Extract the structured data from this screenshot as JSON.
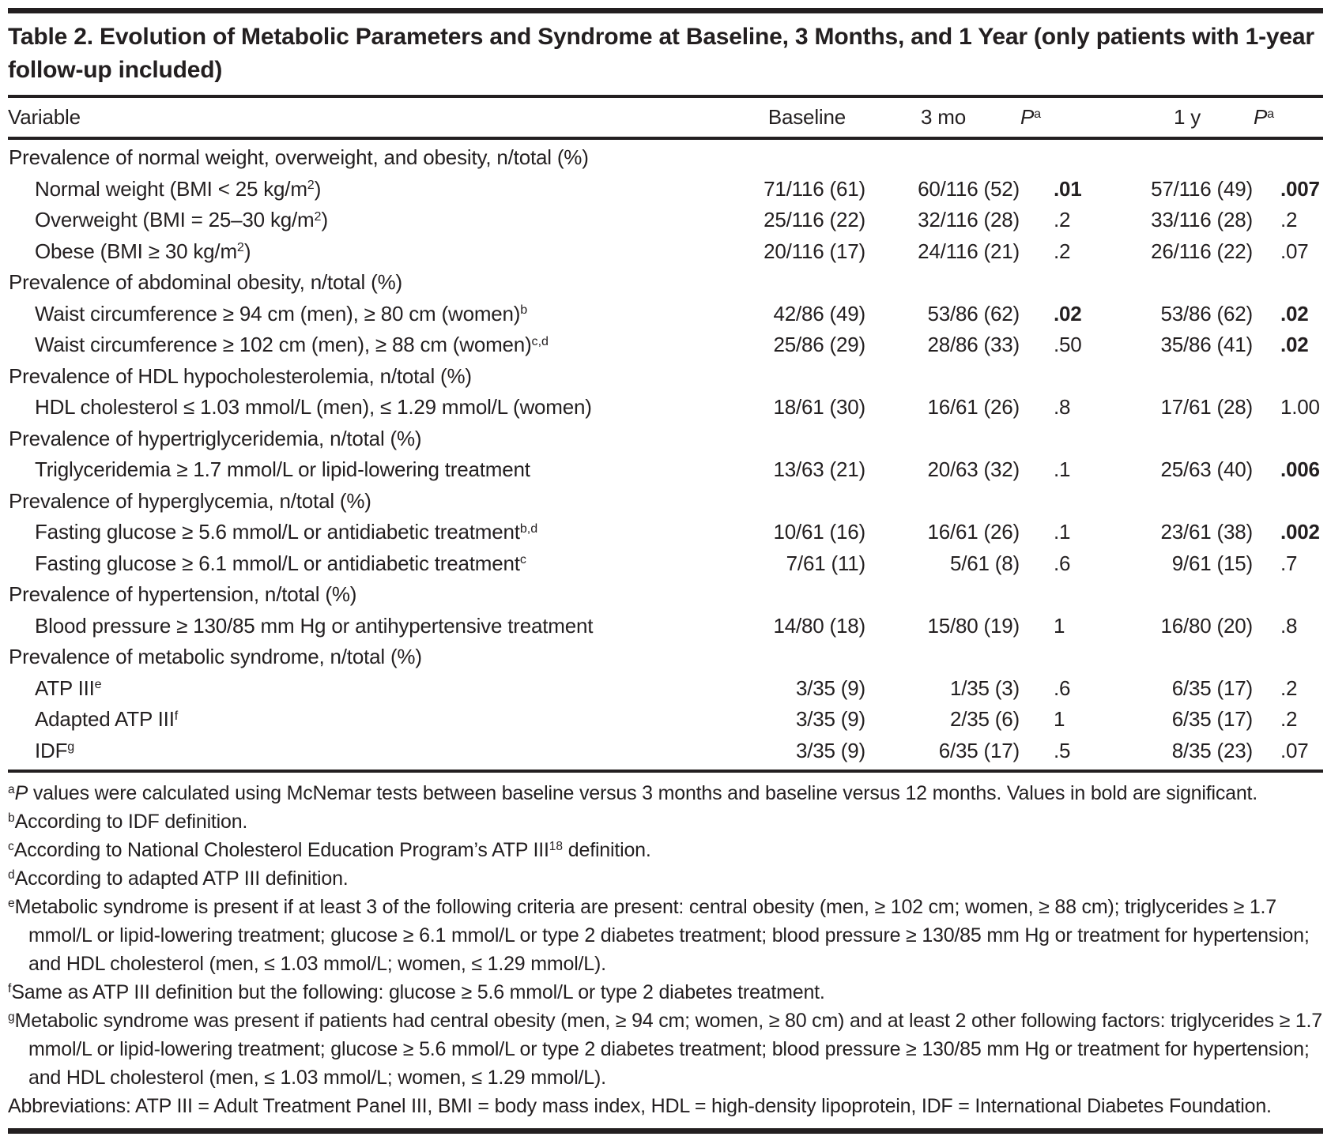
{
  "colors": {
    "text": "#231f20",
    "rule": "#231f20",
    "background": "#ffffff"
  },
  "table": {
    "title": "Table 2. Evolution of Metabolic Parameters and Syndrome at Baseline, 3 Months, and 1 Year (only patients with 1-year follow-up included)",
    "header": {
      "variable": "Variable",
      "baseline": "Baseline",
      "three_mo": "3 mo",
      "p_label": "P",
      "p_sup": "a",
      "one_y": "1 y"
    },
    "rows": [
      {
        "section": true,
        "label": [
          {
            "t": "Prevalence of normal weight, overweight, and obesity, n/total (%)"
          }
        ]
      },
      {
        "section": false,
        "label": [
          {
            "t": "Normal weight (BMI < 25 kg/m"
          },
          {
            "s": "2"
          },
          {
            "t": ")"
          }
        ],
        "cells": [
          "71/116 (61)",
          "60/116 (52)",
          ".01",
          "57/116 (49)",
          ".007"
        ],
        "bold": [
          0,
          0,
          1,
          0,
          1
        ]
      },
      {
        "section": false,
        "label": [
          {
            "t": "Overweight (BMI = 25–30 kg/m"
          },
          {
            "s": "2"
          },
          {
            "t": ")"
          }
        ],
        "cells": [
          "25/116 (22)",
          "32/116 (28)",
          ".2",
          "33/116 (28)",
          ".2"
        ],
        "bold": [
          0,
          0,
          0,
          0,
          0
        ]
      },
      {
        "section": false,
        "label": [
          {
            "t": "Obese (BMI ≥ 30 kg/m"
          },
          {
            "s": "2"
          },
          {
            "t": ")"
          }
        ],
        "cells": [
          "20/116 (17)",
          "24/116 (21)",
          ".2",
          "26/116 (22)",
          ".07"
        ],
        "bold": [
          0,
          0,
          0,
          0,
          0
        ]
      },
      {
        "section": true,
        "label": [
          {
            "t": "Prevalence of abdominal obesity, n/total (%)"
          }
        ]
      },
      {
        "section": false,
        "label": [
          {
            "t": "Waist circumference ≥ 94 cm (men), ≥ 80 cm (women)"
          },
          {
            "s": "b"
          }
        ],
        "cells": [
          "42/86 (49)",
          "53/86 (62)",
          ".02",
          "53/86 (62)",
          ".02"
        ],
        "bold": [
          0,
          0,
          1,
          0,
          1
        ]
      },
      {
        "section": false,
        "label": [
          {
            "t": "Waist circumference ≥ 102 cm (men), ≥ 88 cm (women)"
          },
          {
            "s": "c,d"
          }
        ],
        "cells": [
          "25/86 (29)",
          "28/86 (33)",
          ".50",
          "35/86 (41)",
          ".02"
        ],
        "bold": [
          0,
          0,
          0,
          0,
          1
        ]
      },
      {
        "section": true,
        "label": [
          {
            "t": "Prevalence of HDL hypocholesterolemia, n/total (%)"
          }
        ]
      },
      {
        "section": false,
        "label": [
          {
            "t": "HDL cholesterol ≤ 1.03 mmol/L (men), ≤ 1.29 mmol/L (women)"
          }
        ],
        "cells": [
          "18/61 (30)",
          "16/61 (26)",
          ".8",
          "17/61 (28)",
          "1.00"
        ],
        "bold": [
          0,
          0,
          0,
          0,
          0
        ]
      },
      {
        "section": true,
        "label": [
          {
            "t": "Prevalence of hypertriglyceridemia, n/total (%)"
          }
        ]
      },
      {
        "section": false,
        "label": [
          {
            "t": "Triglyceridemia ≥ 1.7 mmol/L or lipid-lowering treatment"
          }
        ],
        "cells": [
          "13/63 (21)",
          "20/63 (32)",
          ".1",
          "25/63 (40)",
          ".006"
        ],
        "bold": [
          0,
          0,
          0,
          0,
          1
        ]
      },
      {
        "section": true,
        "label": [
          {
            "t": "Prevalence of hyperglycemia, n/total (%)"
          }
        ]
      },
      {
        "section": false,
        "label": [
          {
            "t": "Fasting glucose ≥ 5.6 mmol/L or antidiabetic treatment"
          },
          {
            "s": "b,d"
          }
        ],
        "cells": [
          "10/61 (16)",
          "16/61 (26)",
          ".1",
          "23/61 (38)",
          ".002"
        ],
        "bold": [
          0,
          0,
          0,
          0,
          1
        ]
      },
      {
        "section": false,
        "label": [
          {
            "t": "Fasting glucose ≥ 6.1 mmol/L or antidiabetic treatment"
          },
          {
            "s": "c"
          }
        ],
        "cells": [
          "7/61 (11)",
          "5/61 (8)",
          ".6",
          "9/61 (15)",
          ".7"
        ],
        "bold": [
          0,
          0,
          0,
          0,
          0
        ]
      },
      {
        "section": true,
        "label": [
          {
            "t": "Prevalence of hypertension, n/total (%)"
          }
        ]
      },
      {
        "section": false,
        "label": [
          {
            "t": "Blood pressure ≥ 130/85 mm Hg or antihypertensive treatment"
          }
        ],
        "cells": [
          "14/80 (18)",
          "15/80 (19)",
          "1",
          "16/80 (20)",
          ".8"
        ],
        "bold": [
          0,
          0,
          0,
          0,
          0
        ]
      },
      {
        "section": true,
        "label": [
          {
            "t": "Prevalence of metabolic syndrome, n/total (%)"
          }
        ]
      },
      {
        "section": false,
        "label": [
          {
            "t": "ATP III"
          },
          {
            "s": "e"
          }
        ],
        "cells": [
          "3/35 (9)",
          "1/35 (3)",
          ".6",
          "6/35 (17)",
          ".2"
        ],
        "bold": [
          0,
          0,
          0,
          0,
          0
        ]
      },
      {
        "section": false,
        "label": [
          {
            "t": "Adapted ATP III"
          },
          {
            "s": "f"
          }
        ],
        "cells": [
          "3/35 (9)",
          "2/35 (6)",
          "1",
          "6/35 (17)",
          ".2"
        ],
        "bold": [
          0,
          0,
          0,
          0,
          0
        ]
      },
      {
        "section": false,
        "label": [
          {
            "t": "IDF"
          },
          {
            "s": "g"
          }
        ],
        "cells": [
          "3/35 (9)",
          "6/35 (17)",
          ".5",
          "8/35 (23)",
          ".07"
        ],
        "bold": [
          0,
          0,
          0,
          0,
          0
        ]
      }
    ]
  },
  "footnotes": [
    {
      "segments": [
        {
          "s": "a"
        },
        {
          "i": "P"
        },
        {
          "t": " values were calculated using McNemar tests between baseline versus 3 months and baseline versus 12 months. Values in bold are significant."
        }
      ]
    },
    {
      "segments": [
        {
          "s": "b"
        },
        {
          "t": "According to IDF definition."
        }
      ]
    },
    {
      "segments": [
        {
          "s": "c"
        },
        {
          "t": "According to National Cholesterol Education Program’s ATP III"
        },
        {
          "s": "18"
        },
        {
          "t": " definition."
        }
      ]
    },
    {
      "segments": [
        {
          "s": "d"
        },
        {
          "t": "According to adapted ATP III definition."
        }
      ]
    },
    {
      "segments": [
        {
          "s": "e"
        },
        {
          "t": "Metabolic syndrome is present if at least 3 of the following criteria are present: central obesity (men, ≥ 102 cm; women, ≥ 88 cm); triglycerides ≥ 1.7 mmol/L or lipid-lowering treatment; glucose ≥ 6.1 mmol/L or type 2 diabetes treatment; blood pressure ≥ 130/85 mm Hg or treatment for hypertension; and HDL cholesterol (men, ≤ 1.03 mmol/L; women, ≤ 1.29 mmol/L)."
        }
      ]
    },
    {
      "segments": [
        {
          "s": "f"
        },
        {
          "t": "Same as ATP III definition but the following: glucose ≥ 5.6 mmol/L or type 2 diabetes treatment."
        }
      ]
    },
    {
      "segments": [
        {
          "s": "g"
        },
        {
          "t": "Metabolic syndrome was present if patients had central obesity (men, ≥ 94 cm; women, ≥ 80 cm) and at least 2 other following factors: triglycerides ≥ 1.7 mmol/L or lipid-lowering treatment; glucose ≥ 5.6 mmol/L or type 2 diabetes treatment; blood pressure ≥ 130/85 mm Hg or treatment for hypertension; and HDL cholesterol (men, ≤ 1.03 mmol/L; women, ≤ 1.29 mmol/L)."
        }
      ]
    },
    {
      "segments": [
        {
          "t": "Abbreviations: ATP III = Adult Treatment Panel III, BMI = body mass index, HDL = high-density lipoprotein, IDF = International Diabetes Foundation."
        }
      ]
    }
  ]
}
